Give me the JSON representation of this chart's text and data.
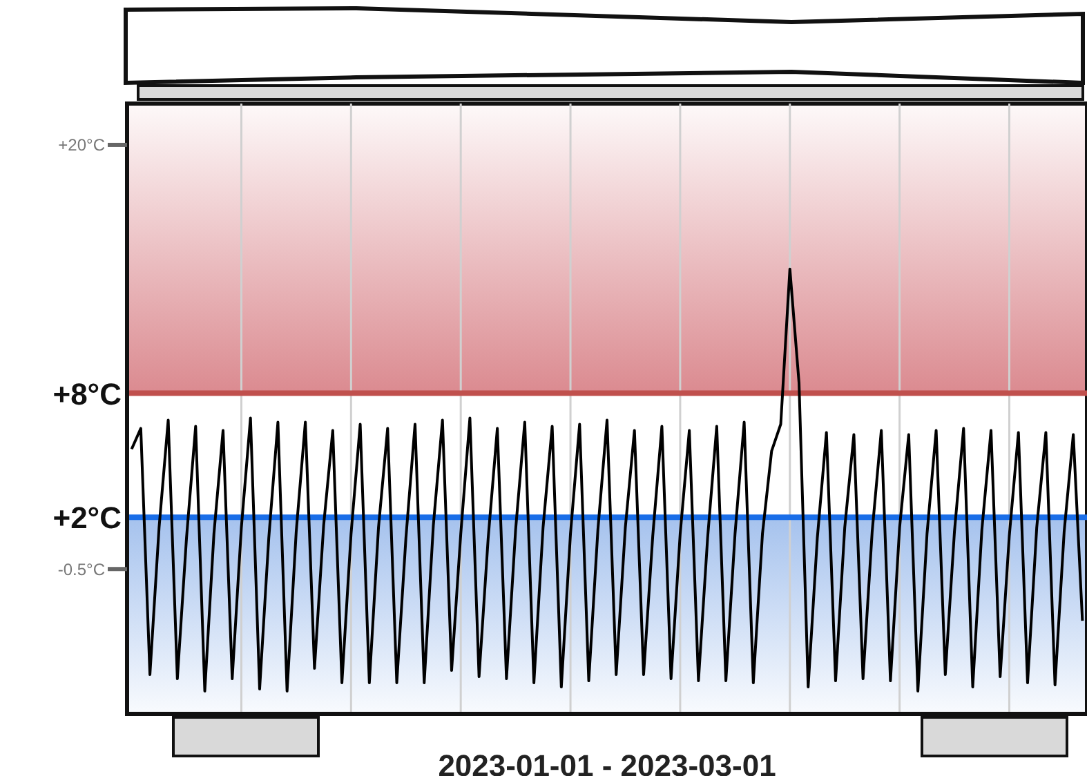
{
  "chart_data": {
    "type": "line",
    "xlabel": "2023-01-01 - 2023-03-01",
    "categories": [
      null,
      null,
      null,
      null,
      null,
      null,
      null,
      null,
      null,
      null,
      null,
      null,
      null,
      null,
      null,
      null,
      null,
      null,
      null,
      null,
      null,
      null,
      null,
      null,
      null,
      null,
      null,
      null,
      null,
      null,
      null,
      null,
      null,
      null,
      null,
      null,
      null,
      null,
      null,
      null,
      null,
      null,
      null,
      null,
      null,
      null,
      null,
      null,
      null,
      null,
      null,
      null,
      null,
      null,
      null,
      null,
      null,
      null,
      null,
      null,
      null,
      null,
      null,
      null,
      null,
      null,
      null,
      null,
      null,
      null,
      null,
      null,
      null,
      null,
      null,
      null,
      null,
      null,
      null,
      null,
      null,
      null,
      null,
      null,
      null,
      null,
      null,
      null,
      null,
      null,
      null,
      null,
      null,
      null,
      null,
      null,
      null,
      null,
      null,
      null,
      null,
      null,
      null,
      null,
      null
    ],
    "series": [
      {
        "color": "#000000",
        "values": [
          5.3,
          6.3,
          -5.6,
          1.5,
          6.7,
          -5.8,
          1.0,
          6.4,
          -6.4,
          1.2,
          6.2,
          -5.8,
          1.5,
          6.8,
          -6.3,
          1.0,
          6.6,
          -6.4,
          1.3,
          6.6,
          -5.3,
          1.6,
          6.2,
          -6.0,
          1.2,
          6.5,
          -6.0,
          1.5,
          6.3,
          -6.0,
          1.0,
          6.5,
          -6.0,
          1.6,
          6.7,
          -5.4,
          1.2,
          6.8,
          -5.7,
          1.0,
          6.3,
          -5.8,
          1.4,
          6.6,
          -6.0,
          1.5,
          6.4,
          -6.2,
          1.2,
          6.5,
          -5.9,
          1.4,
          6.7,
          -5.6,
          1.5,
          6.2,
          -5.6,
          1.1,
          6.4,
          -5.8,
          1.2,
          6.2,
          -5.9,
          1.0,
          6.4,
          -5.9,
          1.2,
          6.6,
          -6.0,
          1.2,
          5.2,
          6.5,
          14.0,
          8.5,
          -6.2,
          1.0,
          6.1,
          -5.9,
          1.5,
          6.0,
          -5.8,
          1.3,
          6.2,
          -5.9,
          1.5,
          6.0,
          -6.4,
          1.2,
          6.2,
          -5.6,
          1.3,
          6.3,
          -6.2,
          1.4,
          6.2,
          -5.7,
          1.1,
          6.1,
          -6.0,
          1.5,
          6.1,
          -6.1,
          1.3,
          6.0,
          -3.0
        ]
      }
    ],
    "ylim": [
      -7.5,
      22
    ],
    "yticks": [
      {
        "value": 20,
        "label": "+20°C"
      },
      {
        "value": -0.5,
        "label": "-0.5°C"
      }
    ],
    "ref_lines": [
      {
        "axis": "y",
        "value": 8,
        "label": "+8°C",
        "color": "#c0504d"
      },
      {
        "axis": "y",
        "value": 2,
        "label": "+2°C",
        "color": "#1a6ee8"
      }
    ],
    "bands": [
      {
        "axis": "y",
        "from": 8,
        "to": 22,
        "color": "#d9848a"
      },
      {
        "axis": "y",
        "from": -7.5,
        "to": 2,
        "color": "#7fa8e6"
      }
    ],
    "grid": "x",
    "tick_labels": "y",
    "marker": "none",
    "line_style": "solid"
  }
}
